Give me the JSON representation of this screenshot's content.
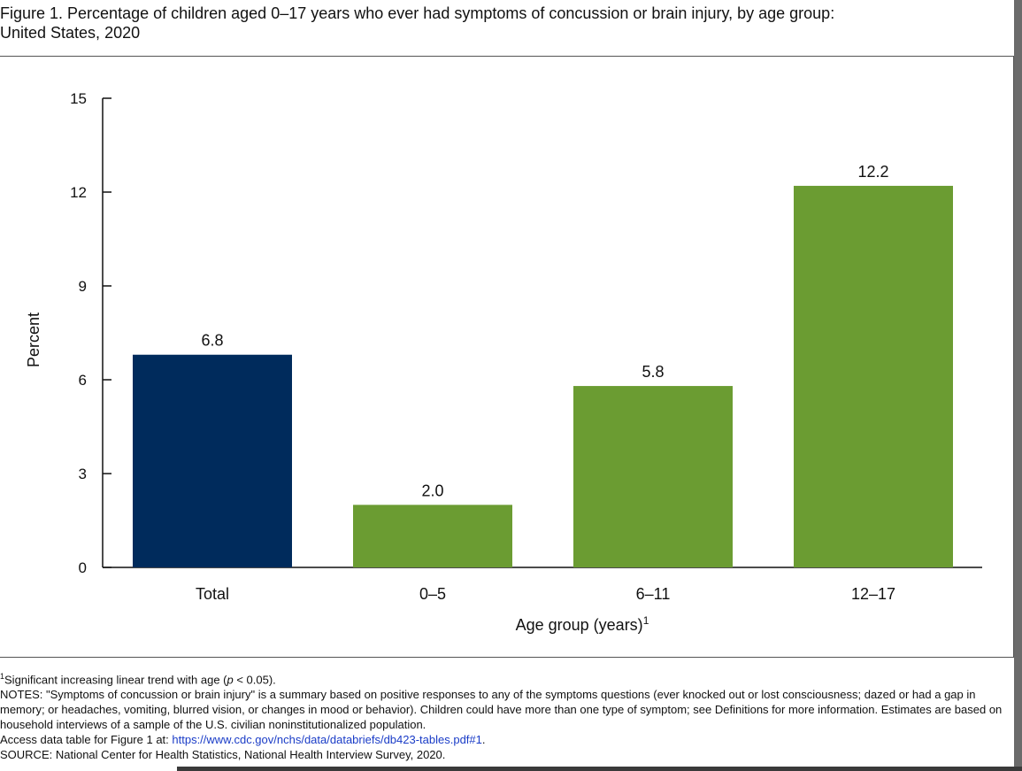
{
  "figure": {
    "title": "Figure 1. Percentage of children aged 0–17 years who ever had symptoms of concussion or brain injury, by age group:\nUnited States, 2020"
  },
  "chart_data": {
    "type": "bar",
    "categories": [
      "Total",
      "0–5",
      "6–11",
      "12–17"
    ],
    "values": [
      6.8,
      2.0,
      5.8,
      12.2
    ],
    "data_labels": [
      "6.8",
      "2.0",
      "5.8",
      "12.2"
    ],
    "bar_colors": [
      "#002b5c",
      "#6b9c32",
      "#6b9c32",
      "#6b9c32"
    ],
    "ylabel": "Percent",
    "xlabel": "Age group (years)",
    "xlabel_superscript": "1",
    "ylim": [
      0,
      15
    ],
    "yticks": [
      0,
      3,
      6,
      9,
      12,
      15
    ],
    "ytick_labels": [
      "0",
      "3",
      "6",
      "9",
      "12",
      "15"
    ],
    "grid": false,
    "legend": "none"
  },
  "footnotes": {
    "note1_marker": "1",
    "note1_text_a": "Significant increasing linear trend with age (",
    "note1_p": "p",
    "note1_text_b": " < 0.05).",
    "notes": "NOTES: \"Symptoms of concussion or brain injury\" is a summary based on positive responses to any of the symptoms questions (ever knocked out or lost consciousness; dazed or had a gap in memory; or headaches, vomiting, blurred vision, or changes in mood or behavior). Children could have more than one type of symptom; see Definitions for more information. Estimates are based on household interviews of a sample of the U.S. civilian noninstitutionalized population.",
    "access_prefix": "Access data table for Figure 1 at: ",
    "access_link": "https://www.cdc.gov/nchs/data/databriefs/db423-tables.pdf#1",
    "access_suffix": ".",
    "source": "SOURCE: National Center for Health Statistics, National Health Interview Survey, 2020."
  }
}
